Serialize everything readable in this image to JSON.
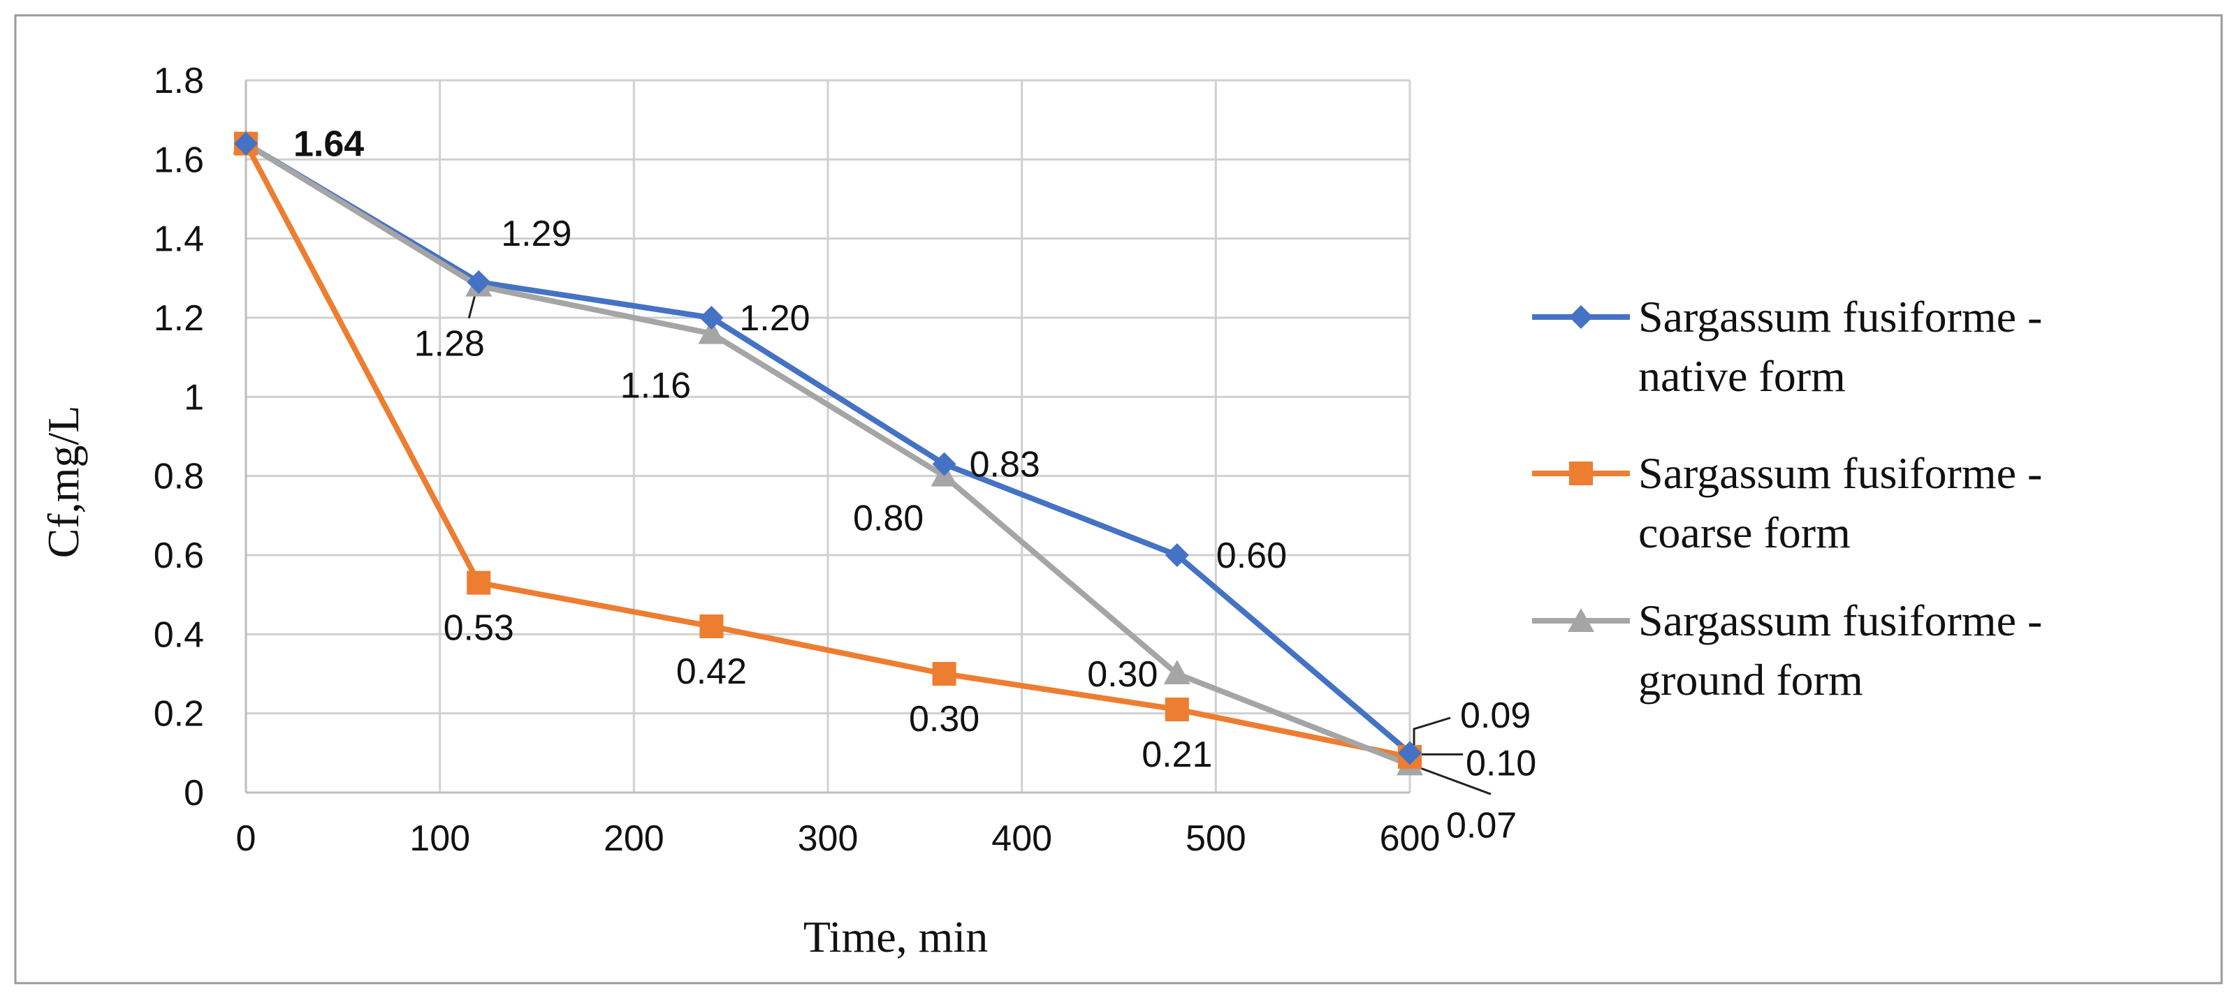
{
  "chart_data": {
    "type": "line",
    "title": "",
    "xlabel": "Time, min",
    "ylabel": "Cf,mg/L",
    "x": [
      0,
      120,
      240,
      360,
      480,
      600
    ],
    "xlim": [
      0,
      600
    ],
    "ylim": [
      0,
      1.8
    ],
    "x_ticks": [
      "0",
      "100",
      "200",
      "300",
      "400",
      "500",
      "600"
    ],
    "y_ticks": [
      "0",
      "0.2",
      "0.4",
      "0.6",
      "0.8",
      "1",
      "1.2",
      "1.4",
      "1.6",
      "1.8"
    ],
    "grid": true,
    "legend_position": "right",
    "series": [
      {
        "name_line1": "Sargassum fusiforme -",
        "name_line2": "native form",
        "marker": "diamond",
        "color": "#4472C4",
        "values": [
          1.64,
          1.29,
          1.2,
          0.83,
          0.6,
          0.1
        ],
        "labels": [
          "1.64",
          "1.29",
          "1.20",
          "0.83",
          "0.60",
          "0.10"
        ]
      },
      {
        "name_line1": "Sargassum fusiforme -",
        "name_line2": "coarse form",
        "marker": "square",
        "color": "#ED7D31",
        "values": [
          1.64,
          0.53,
          0.42,
          0.3,
          0.21,
          0.09
        ],
        "labels": [
          "",
          "0.53",
          "0.42",
          "0.30",
          "0.21",
          "0.09"
        ]
      },
      {
        "name_line1": "Sargassum fusiforme -",
        "name_line2": "ground form",
        "marker": "triangle",
        "color": "#A5A5A5",
        "values": [
          1.64,
          1.28,
          1.16,
          0.8,
          0.3,
          0.07
        ],
        "labels": [
          "",
          "1.28",
          "1.16",
          "0.80",
          "0.30",
          "0.07"
        ]
      }
    ]
  }
}
